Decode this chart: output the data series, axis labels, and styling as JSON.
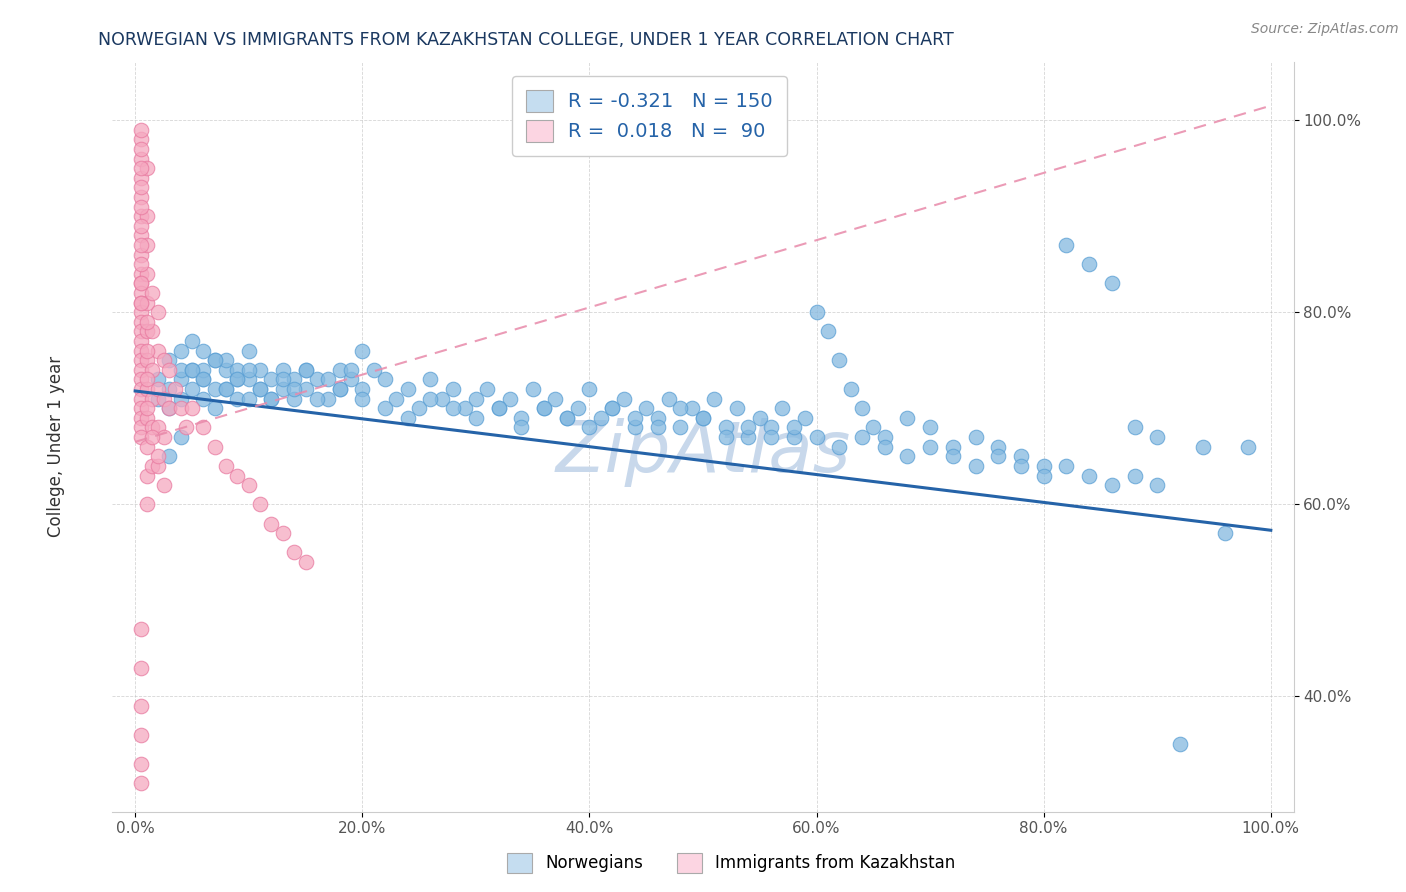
{
  "title": "NORWEGIAN VS IMMIGRANTS FROM KAZAKHSTAN COLLEGE, UNDER 1 YEAR CORRELATION CHART",
  "source": "Source: ZipAtlas.com",
  "ylabel": "College, Under 1 year",
  "xlim": [
    -0.02,
    1.02
  ],
  "ylim": [
    0.28,
    1.06
  ],
  "xtick_vals": [
    0.0,
    0.2,
    0.4,
    0.6,
    0.8,
    1.0
  ],
  "xtick_labels": [
    "0.0%",
    "20.0%",
    "40.0%",
    "60.0%",
    "80.0%",
    "100.0%"
  ],
  "ytick_vals": [
    0.4,
    0.6,
    0.8,
    1.0
  ],
  "ytick_labels": [
    "40.0%",
    "60.0%",
    "80.0%",
    "100.0%"
  ],
  "blue_color": "#85b9e0",
  "blue_edge": "#5a9fd4",
  "blue_fill_legend": "#c5ddf0",
  "pink_color": "#f5a8c0",
  "pink_edge": "#e87aa0",
  "pink_fill_legend": "#fcd5e2",
  "trend_blue": "#2563a8",
  "trend_pink": "#e88aaa",
  "title_color": "#1a3860",
  "source_color": "#888888",
  "r_label_color": "#2563a8",
  "n_label_color": "#2eaadc",
  "watermark_color": "#c8d8eb",
  "blue_trend_x0": 0.0,
  "blue_trend_y0": 0.718,
  "blue_trend_x1": 1.0,
  "blue_trend_y1": 0.573,
  "pink_trend_x0": 0.0,
  "pink_trend_y0": 0.665,
  "pink_trend_x1": 1.0,
  "pink_trend_y1": 1.015,
  "blue_x": [
    0.02,
    0.02,
    0.03,
    0.03,
    0.03,
    0.04,
    0.04,
    0.04,
    0.04,
    0.05,
    0.05,
    0.05,
    0.06,
    0.06,
    0.06,
    0.06,
    0.07,
    0.07,
    0.07,
    0.08,
    0.08,
    0.08,
    0.09,
    0.09,
    0.09,
    0.1,
    0.1,
    0.1,
    0.11,
    0.11,
    0.12,
    0.12,
    0.13,
    0.13,
    0.14,
    0.14,
    0.15,
    0.15,
    0.16,
    0.17,
    0.18,
    0.18,
    0.19,
    0.2,
    0.2,
    0.21,
    0.22,
    0.23,
    0.24,
    0.25,
    0.26,
    0.27,
    0.28,
    0.29,
    0.3,
    0.31,
    0.32,
    0.33,
    0.34,
    0.35,
    0.36,
    0.37,
    0.38,
    0.39,
    0.4,
    0.41,
    0.42,
    0.43,
    0.44,
    0.45,
    0.46,
    0.47,
    0.48,
    0.49,
    0.5,
    0.51,
    0.52,
    0.53,
    0.54,
    0.55,
    0.56,
    0.57,
    0.58,
    0.59,
    0.6,
    0.61,
    0.62,
    0.63,
    0.64,
    0.65,
    0.66,
    0.68,
    0.7,
    0.72,
    0.74,
    0.76,
    0.78,
    0.8,
    0.82,
    0.84,
    0.86,
    0.88,
    0.9,
    0.92,
    0.94,
    0.96,
    0.98,
    0.03,
    0.04,
    0.05,
    0.06,
    0.07,
    0.08,
    0.09,
    0.1,
    0.11,
    0.12,
    0.13,
    0.14,
    0.15,
    0.16,
    0.17,
    0.18,
    0.19,
    0.2,
    0.22,
    0.24,
    0.26,
    0.28,
    0.3,
    0.32,
    0.34,
    0.36,
    0.38,
    0.4,
    0.42,
    0.44,
    0.46,
    0.48,
    0.5,
    0.52,
    0.54,
    0.56,
    0.58,
    0.6,
    0.62,
    0.64,
    0.66,
    0.68,
    0.7,
    0.72,
    0.74,
    0.76,
    0.78,
    0.8,
    0.82,
    0.84,
    0.86,
    0.88,
    0.9
  ],
  "blue_y": [
    0.73,
    0.71,
    0.75,
    0.72,
    0.7,
    0.76,
    0.73,
    0.71,
    0.74,
    0.77,
    0.74,
    0.72,
    0.76,
    0.73,
    0.71,
    0.74,
    0.75,
    0.72,
    0.7,
    0.74,
    0.72,
    0.75,
    0.73,
    0.71,
    0.74,
    0.76,
    0.73,
    0.71,
    0.74,
    0.72,
    0.73,
    0.71,
    0.74,
    0.72,
    0.73,
    0.71,
    0.74,
    0.72,
    0.73,
    0.71,
    0.72,
    0.74,
    0.73,
    0.76,
    0.72,
    0.74,
    0.73,
    0.71,
    0.72,
    0.7,
    0.73,
    0.71,
    0.72,
    0.7,
    0.71,
    0.72,
    0.7,
    0.71,
    0.69,
    0.72,
    0.7,
    0.71,
    0.69,
    0.7,
    0.72,
    0.69,
    0.7,
    0.71,
    0.68,
    0.7,
    0.69,
    0.71,
    0.68,
    0.7,
    0.69,
    0.71,
    0.68,
    0.7,
    0.67,
    0.69,
    0.68,
    0.7,
    0.67,
    0.69,
    0.8,
    0.78,
    0.75,
    0.72,
    0.7,
    0.68,
    0.67,
    0.69,
    0.68,
    0.66,
    0.67,
    0.66,
    0.65,
    0.64,
    0.87,
    0.85,
    0.83,
    0.68,
    0.67,
    0.35,
    0.66,
    0.57,
    0.66,
    0.65,
    0.67,
    0.74,
    0.73,
    0.75,
    0.72,
    0.73,
    0.74,
    0.72,
    0.71,
    0.73,
    0.72,
    0.74,
    0.71,
    0.73,
    0.72,
    0.74,
    0.71,
    0.7,
    0.69,
    0.71,
    0.7,
    0.69,
    0.7,
    0.68,
    0.7,
    0.69,
    0.68,
    0.7,
    0.69,
    0.68,
    0.7,
    0.69,
    0.67,
    0.68,
    0.67,
    0.68,
    0.67,
    0.66,
    0.67,
    0.66,
    0.65,
    0.66,
    0.65,
    0.64,
    0.65,
    0.64,
    0.63,
    0.64,
    0.63,
    0.62,
    0.63,
    0.62
  ],
  "pink_x": [
    0.005,
    0.005,
    0.005,
    0.005,
    0.005,
    0.005,
    0.005,
    0.005,
    0.005,
    0.005,
    0.005,
    0.005,
    0.005,
    0.005,
    0.005,
    0.005,
    0.005,
    0.005,
    0.005,
    0.005,
    0.005,
    0.005,
    0.005,
    0.005,
    0.005,
    0.01,
    0.01,
    0.01,
    0.01,
    0.01,
    0.01,
    0.01,
    0.01,
    0.01,
    0.01,
    0.01,
    0.01,
    0.015,
    0.015,
    0.015,
    0.015,
    0.015,
    0.015,
    0.02,
    0.02,
    0.02,
    0.02,
    0.02,
    0.025,
    0.025,
    0.025,
    0.03,
    0.03,
    0.035,
    0.04,
    0.045,
    0.05,
    0.06,
    0.07,
    0.08,
    0.09,
    0.1,
    0.11,
    0.12,
    0.13,
    0.14,
    0.15,
    0.005,
    0.005,
    0.005,
    0.005,
    0.005,
    0.005,
    0.005,
    0.005,
    0.005,
    0.005,
    0.01,
    0.01,
    0.01,
    0.01,
    0.015,
    0.02,
    0.025,
    0.005,
    0.005,
    0.005,
    0.005,
    0.005,
    0.005
  ],
  "pink_y": [
    0.98,
    0.96,
    0.94,
    0.92,
    0.9,
    0.88,
    0.86,
    0.84,
    0.83,
    0.82,
    0.81,
    0.8,
    0.79,
    0.78,
    0.77,
    0.76,
    0.75,
    0.74,
    0.73,
    0.72,
    0.71,
    0.7,
    0.69,
    0.68,
    0.67,
    0.95,
    0.9,
    0.87,
    0.84,
    0.81,
    0.78,
    0.75,
    0.72,
    0.69,
    0.66,
    0.63,
    0.6,
    0.82,
    0.78,
    0.74,
    0.71,
    0.68,
    0.64,
    0.8,
    0.76,
    0.72,
    0.68,
    0.64,
    0.75,
    0.71,
    0.67,
    0.74,
    0.7,
    0.72,
    0.7,
    0.68,
    0.7,
    0.68,
    0.66,
    0.64,
    0.63,
    0.62,
    0.6,
    0.58,
    0.57,
    0.55,
    0.54,
    0.99,
    0.97,
    0.95,
    0.93,
    0.91,
    0.89,
    0.87,
    0.85,
    0.83,
    0.81,
    0.79,
    0.76,
    0.73,
    0.7,
    0.67,
    0.65,
    0.62,
    0.47,
    0.43,
    0.39,
    0.36,
    0.33,
    0.31
  ]
}
